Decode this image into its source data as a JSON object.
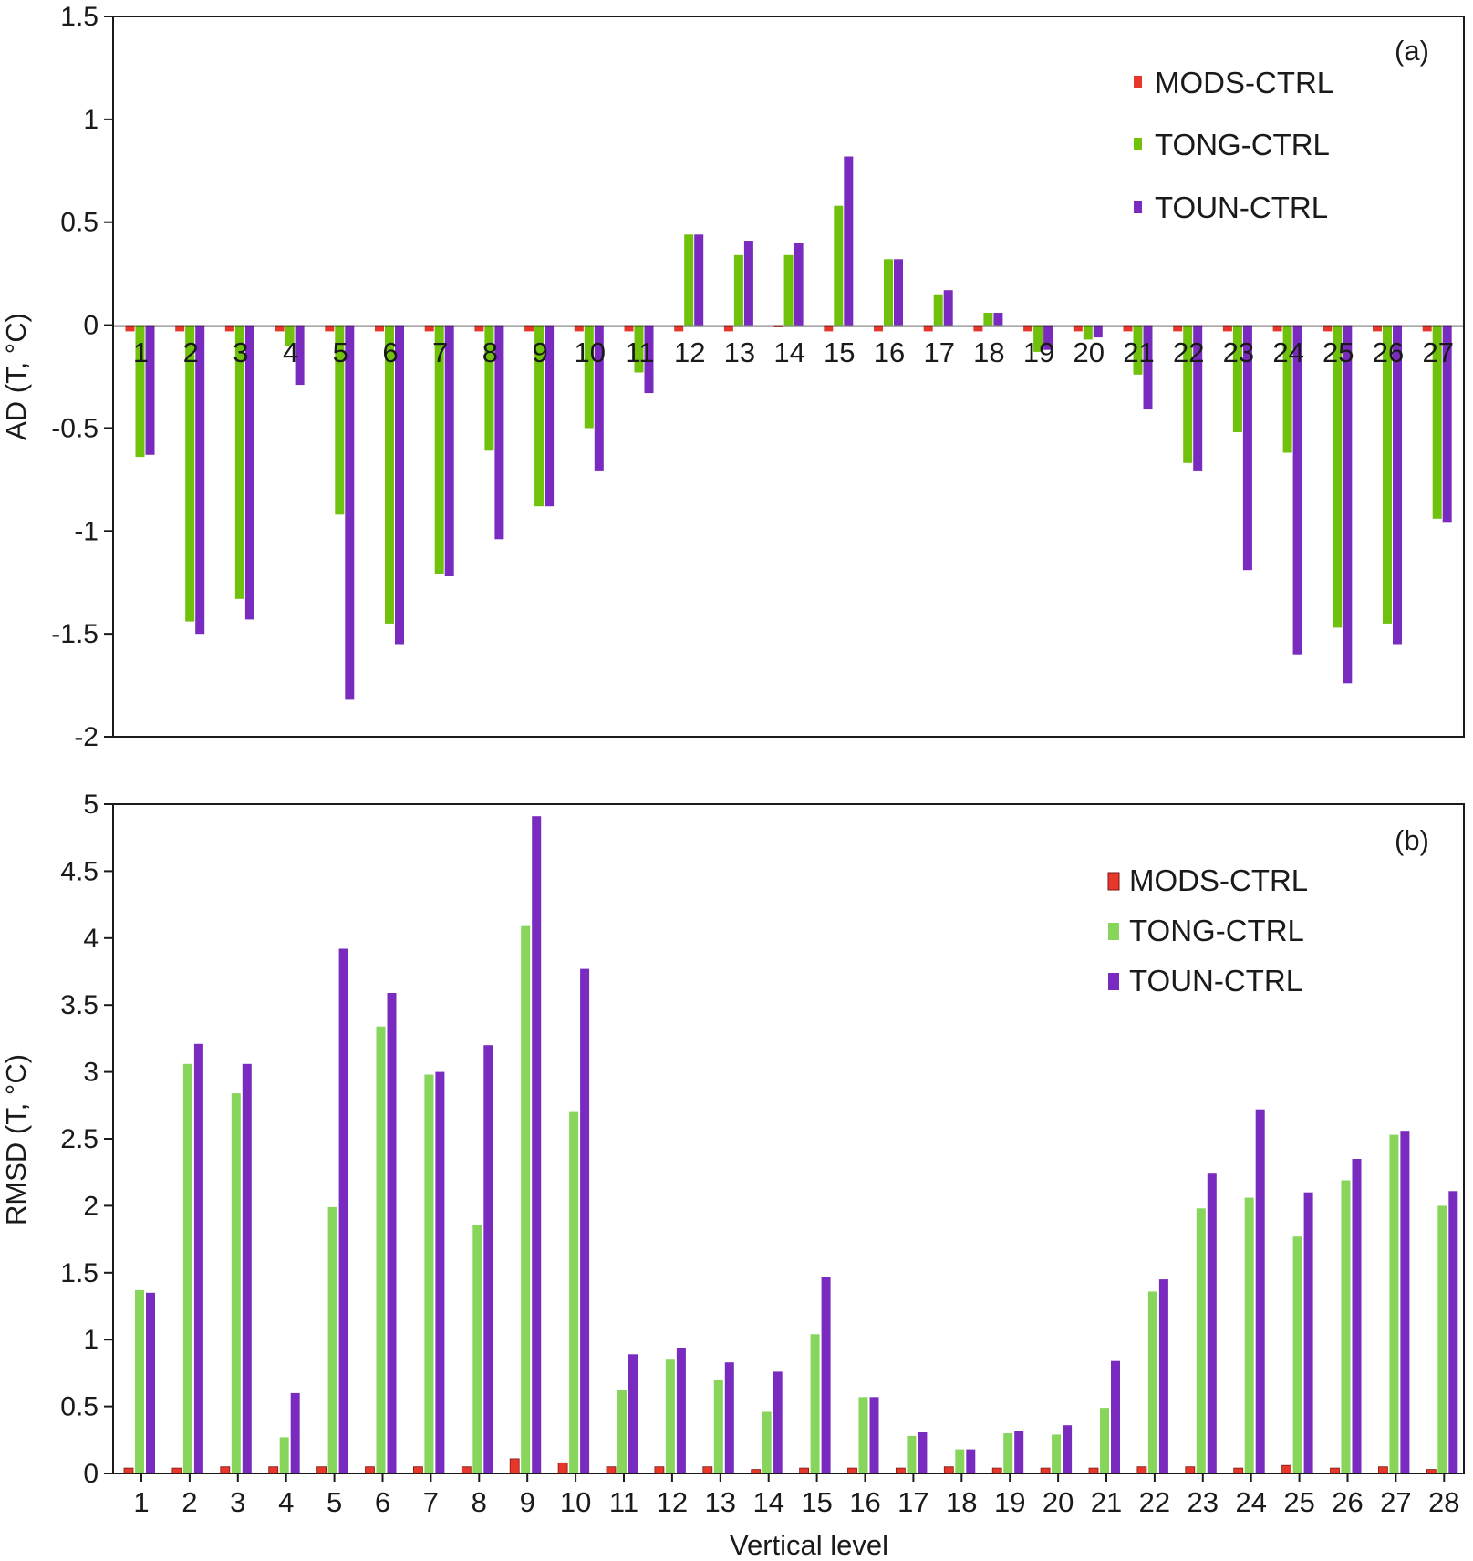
{
  "colors": {
    "MODS-CTRL_a": "#e8362b",
    "TONG-CTRL_a": "#6fc10c",
    "TOUN-CTRL_a": "#7a2bbf",
    "MODS-CTRL_b": "#e8362b",
    "TONG-CTRL_b": "#87d65b",
    "TOUN-CTRL_b": "#7a2bbf",
    "axis": "#1a1a1a"
  },
  "chart_data": [
    {
      "id": "a",
      "type": "bar",
      "panel_label": "(a)",
      "ylabel": "AD (T, °C)",
      "xlabel": "",
      "ylim": [
        -2,
        1.5
      ],
      "yticks": [
        "1.5",
        "1",
        "0.5",
        "0",
        "-0.5",
        "-1",
        "-1.5",
        "-2"
      ],
      "legend_position": "top-right",
      "categories": [
        "1",
        "2",
        "3",
        "4",
        "5",
        "6",
        "7",
        "8",
        "9",
        "10",
        "11",
        "12",
        "13",
        "14",
        "15",
        "16",
        "17",
        "18",
        "19",
        "20",
        "21",
        "22",
        "23",
        "24",
        "25",
        "26",
        "27"
      ],
      "series": [
        {
          "name": "MODS-CTRL",
          "values": [
            -0.03,
            -0.03,
            -0.03,
            -0.03,
            -0.03,
            -0.03,
            -0.03,
            -0.03,
            -0.03,
            -0.03,
            -0.03,
            -0.03,
            -0.03,
            -0.01,
            -0.03,
            -0.03,
            -0.03,
            -0.03,
            -0.03,
            -0.03,
            -0.03,
            -0.03,
            -0.03,
            -0.03,
            -0.03,
            -0.03,
            -0.03
          ]
        },
        {
          "name": "TONG-CTRL",
          "values": [
            -0.64,
            -1.44,
            -1.33,
            -0.1,
            -0.92,
            -1.45,
            -1.21,
            -0.61,
            -0.88,
            -0.5,
            -0.23,
            0.44,
            0.34,
            0.34,
            0.58,
            0.32,
            0.15,
            0.06,
            -0.13,
            -0.07,
            -0.24,
            -0.67,
            -0.52,
            -0.62,
            -1.47,
            -1.45,
            -0.94
          ]
        },
        {
          "name": "TOUN-CTRL",
          "values": [
            -0.63,
            -1.5,
            -1.43,
            -0.29,
            -1.82,
            -1.55,
            -1.22,
            -1.04,
            -0.88,
            -0.71,
            -0.33,
            0.44,
            0.41,
            0.4,
            0.82,
            0.32,
            0.17,
            0.06,
            -0.12,
            -0.06,
            -0.41,
            -0.71,
            -1.19,
            -1.6,
            -1.74,
            -1.55,
            -0.96
          ]
        }
      ]
    },
    {
      "id": "b",
      "type": "bar",
      "panel_label": "(b)",
      "ylabel": "RMSD (T, °C)",
      "xlabel": "Vertical level",
      "ylim": [
        0,
        5
      ],
      "yticks": [
        "5",
        "4.5",
        "4",
        "3.5",
        "3",
        "2.5",
        "2",
        "1.5",
        "1",
        "0.5",
        "0"
      ],
      "legend_position": "top-right",
      "categories": [
        "1",
        "2",
        "3",
        "4",
        "5",
        "6",
        "7",
        "8",
        "9",
        "10",
        "11",
        "12",
        "13",
        "14",
        "15",
        "16",
        "17",
        "18",
        "19",
        "20",
        "21",
        "22",
        "23",
        "24",
        "25",
        "26",
        "27",
        "28"
      ],
      "series": [
        {
          "name": "MODS-CTRL",
          "values": [
            0.04,
            0.04,
            0.05,
            0.05,
            0.05,
            0.05,
            0.05,
            0.05,
            0.11,
            0.08,
            0.05,
            0.05,
            0.05,
            0.03,
            0.04,
            0.04,
            0.04,
            0.05,
            0.04,
            0.04,
            0.04,
            0.05,
            0.05,
            0.04,
            0.06,
            0.04,
            0.05,
            0.03
          ]
        },
        {
          "name": "TONG-CTRL",
          "values": [
            1.37,
            3.06,
            2.84,
            0.27,
            1.99,
            3.34,
            2.98,
            1.86,
            4.09,
            2.7,
            0.62,
            0.85,
            0.7,
            0.46,
            1.04,
            0.57,
            0.28,
            0.18,
            0.3,
            0.29,
            0.49,
            1.36,
            1.98,
            2.06,
            1.77,
            2.19,
            2.53,
            2.0
          ]
        },
        {
          "name": "TOUN-CTRL",
          "values": [
            1.35,
            3.21,
            3.06,
            0.6,
            3.92,
            3.59,
            3.0,
            3.2,
            4.91,
            3.77,
            0.89,
            0.94,
            0.83,
            0.76,
            1.47,
            0.57,
            0.31,
            0.18,
            0.32,
            0.36,
            0.84,
            1.45,
            2.24,
            2.72,
            2.1,
            2.35,
            2.56,
            2.11
          ]
        }
      ]
    }
  ]
}
